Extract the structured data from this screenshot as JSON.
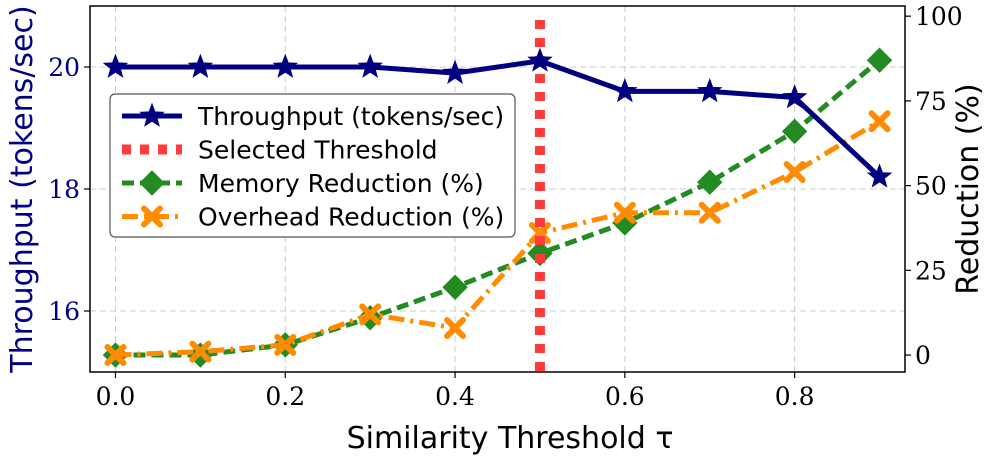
{
  "chart_data": {
    "type": "line",
    "x": [
      0.0,
      0.1,
      0.2,
      0.3,
      0.4,
      0.5,
      0.6,
      0.7,
      0.8,
      0.9
    ],
    "xlabel": "Similarity Threshold τ",
    "xlim": [
      -0.03,
      0.93
    ],
    "xticks": [
      0.0,
      0.2,
      0.4,
      0.6,
      0.8
    ],
    "xtick_labels": [
      "0.0",
      "0.2",
      "0.4",
      "0.6",
      "0.8"
    ],
    "y_left": {
      "label": "Throughput (tokens/sec)",
      "lim": [
        15.0,
        21.0
      ],
      "ticks": [
        16,
        18,
        20
      ],
      "tick_labels": [
        "16",
        "18",
        "20"
      ],
      "color": "#000080"
    },
    "y_right": {
      "label": "Reduction (%)",
      "lim": [
        -5,
        103
      ],
      "ticks": [
        0,
        25,
        50,
        75,
        100
      ],
      "tick_labels": [
        "0",
        "25",
        "50",
        "75",
        "100"
      ]
    },
    "series": [
      {
        "name": "Throughput (tokens/sec)",
        "axis": "left",
        "color": "#000080",
        "marker": "star",
        "linestyle": "solid",
        "values": [
          20.0,
          20.0,
          20.0,
          20.0,
          19.9,
          20.1,
          19.6,
          19.6,
          19.5,
          18.2
        ]
      },
      {
        "name": "Memory Reduction (%)",
        "axis": "right",
        "color": "#228b22",
        "marker": "diamond",
        "linestyle": "dashed",
        "values": [
          0,
          0,
          3,
          11,
          20,
          30,
          39,
          51,
          66,
          87
        ]
      },
      {
        "name": "Overhead Reduction (%)",
        "axis": "right",
        "color": "#ff8c00",
        "marker": "x",
        "linestyle": "dashdot",
        "values": [
          0,
          1,
          3,
          12,
          8,
          36,
          42,
          42,
          54,
          69
        ]
      }
    ],
    "vline": {
      "name": "Selected Threshold",
      "x": 0.5,
      "color": "#ff3b3b",
      "linestyle": "dotted"
    },
    "legend_order": [
      "Throughput (tokens/sec)",
      "Selected Threshold",
      "Memory Reduction (%)",
      "Overhead Reduction (%)"
    ],
    "legend_position": "center-left",
    "grid": true
  }
}
